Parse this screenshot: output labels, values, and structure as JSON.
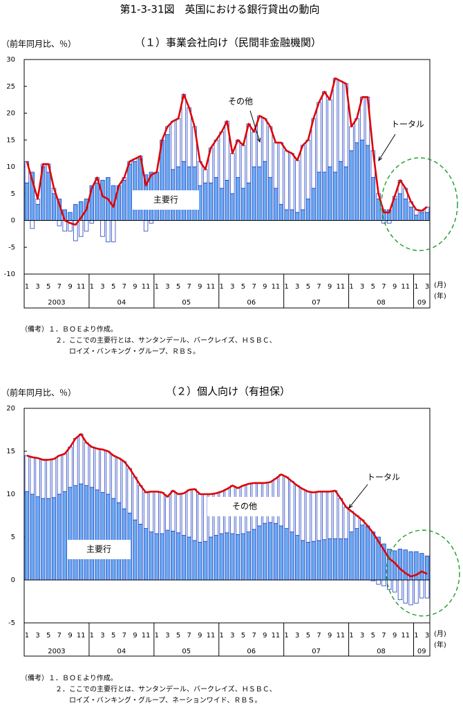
{
  "title": "第1-3-31図　英国における銀行貸出の動向",
  "chart_data": [
    {
      "type": "bar",
      "subtitle": "（１）事業会社向け（民間非金融機関）",
      "ylabel": "（前年同月比、％）",
      "ylim": [
        -10,
        30
      ],
      "yticks": [
        30,
        25,
        20,
        15,
        10,
        5,
        0,
        -5,
        -10
      ],
      "categories": [
        "1",
        null,
        "3",
        null,
        "5",
        null,
        "7",
        null,
        "9",
        null,
        "11",
        null,
        "1",
        null,
        "3",
        null,
        "5",
        null,
        "7",
        null,
        "9",
        null,
        "11",
        null,
        "1",
        null,
        "3",
        null,
        "5",
        null,
        "7",
        null,
        "9",
        null,
        "11",
        null,
        "1",
        null,
        "3",
        null,
        "5",
        null,
        "7",
        null,
        "9",
        null,
        "11",
        null,
        "1",
        null,
        "3",
        null,
        "5",
        null,
        "7",
        null,
        "9",
        null,
        "11",
        null,
        "1",
        null,
        "3",
        null,
        "5",
        null,
        "7",
        null,
        "9",
        null,
        "11",
        null,
        "1",
        null,
        "3"
      ],
      "years": [
        "2003",
        "04",
        "05",
        "06",
        "07",
        "08",
        "09"
      ],
      "x_unit": "(月)",
      "year_unit": "(年)",
      "series": [
        {
          "name": "主要行",
          "color": "#6aaaf2",
          "values": [
            7,
            9,
            3,
            10,
            9,
            5,
            4,
            2,
            1.5,
            3,
            3.5,
            4,
            6.5,
            7,
            7.5,
            8,
            6.5,
            6.5,
            7.5,
            10.5,
            11,
            11.5,
            8.5,
            9,
            9,
            15,
            16,
            9.5,
            10,
            11,
            10,
            10,
            6.5,
            7,
            7,
            8,
            6,
            7.5,
            5,
            8,
            6,
            7,
            10,
            10,
            11,
            8,
            6,
            3,
            2,
            2,
            1.5,
            2,
            4,
            6,
            9,
            9,
            10,
            9,
            11,
            10,
            13,
            14.5,
            15,
            14,
            8,
            4,
            2,
            2,
            4,
            5,
            4,
            2.5,
            1,
            1.5,
            1.5
          ]
        },
        {
          "name": "その他",
          "color": "#ffffff",
          "values": [
            4,
            -1.5,
            1,
            0.5,
            1.5,
            1,
            -1,
            -2,
            -2,
            -3.8,
            -3,
            -2,
            -0.5,
            1,
            -3,
            -4,
            -4,
            0,
            0.5,
            0.5,
            0.5,
            0.5,
            -2,
            -0.5,
            0,
            0,
            1.5,
            9,
            9,
            12.5,
            11,
            7.5,
            4.5,
            2.5,
            6.5,
            7,
            10.5,
            11,
            7.5,
            7,
            8,
            11,
            6.5,
            9.5,
            8,
            9.5,
            8.5,
            11.5,
            11,
            10.5,
            9.7,
            12,
            11,
            13,
            13,
            15,
            12.5,
            17.5,
            15,
            15.5,
            4.5,
            4.5,
            8,
            9,
            5,
            1,
            -0.5,
            -0.5,
            0.5,
            2.5,
            2,
            1,
            1,
            0.3,
            1
          ]
        },
        {
          "name": "トータル",
          "type": "line",
          "color": "#e00000",
          "values": [
            11,
            7.5,
            4,
            10.5,
            10.5,
            6,
            3,
            0,
            -0.5,
            -0.8,
            0.5,
            2,
            6,
            8,
            4.5,
            4,
            2.5,
            6.5,
            8,
            11,
            11.5,
            12,
            6.5,
            8.5,
            9,
            15,
            17.5,
            18.5,
            19,
            23.5,
            21,
            17.5,
            11,
            9.5,
            13.5,
            15,
            16.5,
            18.5,
            12.5,
            15,
            14,
            18,
            16.5,
            19.5,
            19,
            17.5,
            14.5,
            14.5,
            13,
            12.5,
            11.2,
            14,
            15,
            19,
            22,
            24,
            22.5,
            26.5,
            26,
            25.5,
            17.5,
            19,
            23,
            23,
            13,
            5,
            1.5,
            1.5,
            4.5,
            7.5,
            6,
            3.5,
            2,
            1.8,
            2.5
          ]
        }
      ],
      "notes": [
        "（備考）１．ＢＯＥより作成。",
        "２．ここでの主要行とは、サンタンデール、バークレイズ、ＨＳＢＣ、",
        "ロイズ・バンキング・グループ、ＲＢＳ。"
      ]
    },
    {
      "type": "bar",
      "subtitle": "（２）個人向け（有担保）",
      "ylabel": "（前年同月比、％）",
      "ylim": [
        -5,
        20
      ],
      "yticks": [
        20,
        15,
        10,
        5,
        0,
        -5
      ],
      "categories": [
        "1",
        null,
        "3",
        null,
        "5",
        null,
        "7",
        null,
        "9",
        null,
        "11",
        null,
        "1",
        null,
        "3",
        null,
        "5",
        null,
        "7",
        null,
        "9",
        null,
        "11",
        null,
        "1",
        null,
        "3",
        null,
        "5",
        null,
        "7",
        null,
        "9",
        null,
        "11",
        null,
        "1",
        null,
        "3",
        null,
        "5",
        null,
        "7",
        null,
        "9",
        null,
        "11",
        null,
        "1",
        null,
        "3",
        null,
        "5",
        null,
        "7",
        null,
        "9",
        null,
        "11",
        null,
        "1",
        null,
        "3",
        null,
        "5",
        null,
        "7",
        null,
        "9",
        null,
        "11",
        null,
        "1",
        null,
        "3"
      ],
      "years": [
        "2003",
        "04",
        "05",
        "06",
        "07",
        "08",
        "09"
      ],
      "x_unit": "(月)",
      "year_unit": "(年)",
      "series": [
        {
          "name": "主要行",
          "color": "#6aaaf2",
          "values": [
            10.3,
            10,
            9.7,
            9.5,
            9.5,
            9.6,
            10,
            10.3,
            10.8,
            11,
            11.2,
            11,
            10.8,
            10.5,
            10.2,
            10,
            9.5,
            9,
            8.3,
            7.8,
            7,
            6.5,
            6,
            5.6,
            5.4,
            5.4,
            5.8,
            5.7,
            5.5,
            5.2,
            5,
            4.6,
            4.4,
            4.5,
            5,
            5.2,
            5.4,
            5.5,
            5.4,
            5.3,
            5.4,
            5.6,
            5.9,
            6.3,
            6.6,
            6.7,
            6.6,
            6.3,
            6,
            5.6,
            5.2,
            4.6,
            4.4,
            4.5,
            4.6,
            4.7,
            4.8,
            4.8,
            4.8,
            4.8,
            5.6,
            6,
            6.4,
            6.2,
            5.6,
            5,
            4.2,
            3.6,
            3.4,
            3.6,
            3.5,
            3.3,
            3.3,
            3.1,
            2.8
          ]
        },
        {
          "name": "その他",
          "color": "#ffffff",
          "values": [
            4.2,
            4.3,
            4.5,
            4.5,
            4.5,
            4.5,
            4.5,
            4.4,
            4.7,
            5.5,
            5.8,
            5,
            4.7,
            4.8,
            5,
            5,
            5,
            5.2,
            5.5,
            5.2,
            5,
            4.5,
            4.2,
            4.7,
            4.9,
            4.8,
            3.9,
            4.7,
            4.5,
            4.9,
            5.5,
            6,
            5.6,
            5.5,
            5,
            4.9,
            4.9,
            5.1,
            5.6,
            5.4,
            5.6,
            5.6,
            5.4,
            5,
            4.7,
            4.7,
            5.2,
            6,
            6,
            5.9,
            5.8,
            6,
            5.9,
            5.7,
            5.7,
            5.6,
            5.5,
            5.6,
            4.7,
            3.7,
            2.4,
            1.5,
            0.6,
            0.1,
            -0.1,
            -0.5,
            -0.7,
            -1.1,
            -1.4,
            -2.3,
            -2.7,
            -2.9,
            -2.7,
            -2.1,
            -2.1
          ]
        },
        {
          "name": "トータル",
          "type": "line",
          "color": "#e00000",
          "values": [
            14.5,
            14.3,
            14.2,
            14,
            14,
            14.1,
            14.5,
            14.7,
            15.5,
            16.5,
            17,
            16,
            15.5,
            15.3,
            15.2,
            15,
            14.5,
            14.2,
            13.8,
            13,
            12,
            11,
            10.2,
            10.3,
            10.3,
            10.2,
            9.7,
            10.4,
            10,
            10.1,
            10.5,
            10.6,
            10,
            10,
            10,
            10.1,
            10.3,
            10.6,
            11,
            10.7,
            11,
            11.2,
            11.3,
            11.3,
            11.3,
            11.4,
            11.8,
            12.3,
            12,
            11.5,
            11,
            10.6,
            10.3,
            10.2,
            10.3,
            10.3,
            10.3,
            10.4,
            9.5,
            8.5,
            8,
            7.5,
            7,
            6.3,
            5.5,
            4.5,
            3.5,
            2.5,
            2,
            1.3,
            0.8,
            0.4,
            0.6,
            1,
            0.7
          ]
        }
      ],
      "notes": [
        "（備考）１．ＢＯＥより作成。",
        "２．ここでの主要行とは、サンタンデール、バークレイズ、ＨＳＢＣ、",
        "ロイズ・バンキング・グループ、ネーションワイド、ＲＢＳ。"
      ]
    }
  ]
}
